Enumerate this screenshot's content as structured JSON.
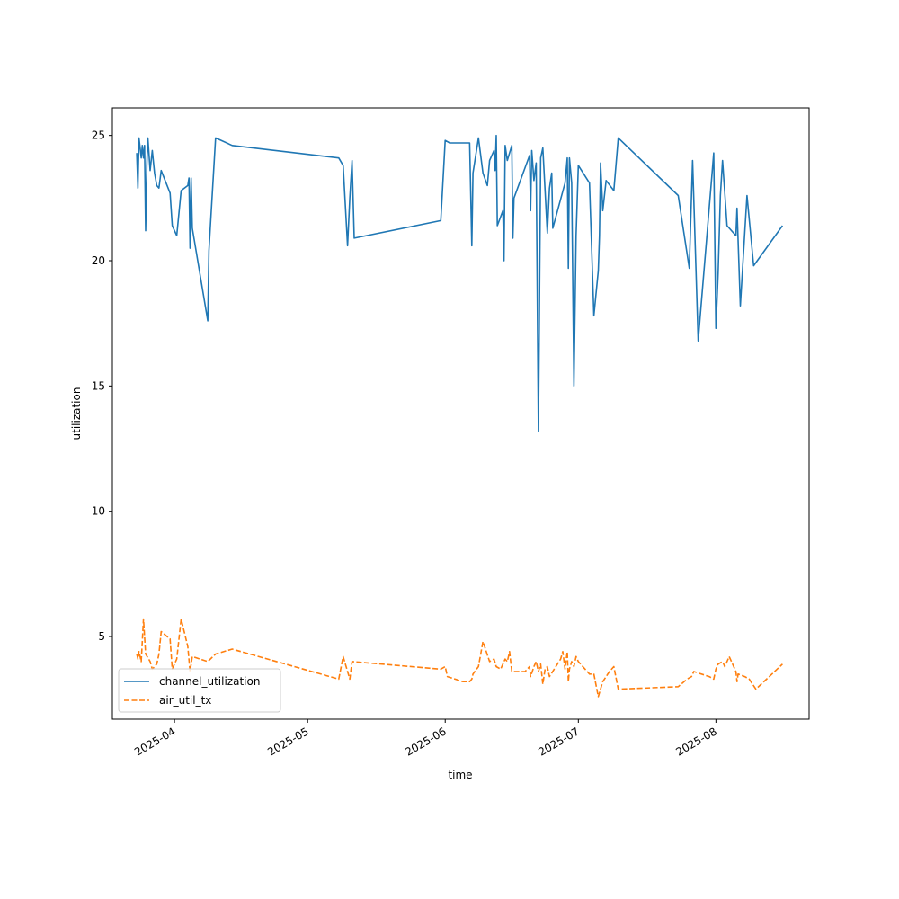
{
  "chart_data": {
    "type": "line",
    "title": "",
    "xlabel": "time",
    "ylabel": "utilization",
    "xlim": [
      "2025-03-18",
      "2025-08-22"
    ],
    "ylim": [
      1.7,
      26.1
    ],
    "grid": false,
    "legend_position": "lower-left",
    "x_ticks": [
      {
        "date": "2025-04-01",
        "label": "2025-04"
      },
      {
        "date": "2025-05-01",
        "label": "2025-05"
      },
      {
        "date": "2025-06-01",
        "label": "2025-06"
      },
      {
        "date": "2025-07-01",
        "label": "2025-07"
      },
      {
        "date": "2025-08-01",
        "label": "2025-08"
      }
    ],
    "y_ticks": [
      5,
      10,
      15,
      20,
      25
    ],
    "series": [
      {
        "name": "channel_utilization",
        "color": "#1f77b4",
        "dash": "solid",
        "points": [
          [
            "2025-03-23T12:00",
            24.3
          ],
          [
            "2025-03-23T18:00",
            22.9
          ],
          [
            "2025-03-24T00:00",
            24.9
          ],
          [
            "2025-03-24T12:00",
            24.1
          ],
          [
            "2025-03-24T18:00",
            24.6
          ],
          [
            "2025-03-25T00:00",
            24.1
          ],
          [
            "2025-03-25T06:00",
            24.6
          ],
          [
            "2025-03-25T12:00",
            21.2
          ],
          [
            "2025-03-25T18:00",
            23.8
          ],
          [
            "2025-03-26T00:00",
            24.9
          ],
          [
            "2025-03-26T12:00",
            23.6
          ],
          [
            "2025-03-27T00:00",
            24.4
          ],
          [
            "2025-03-27T12:00",
            23.5
          ],
          [
            "2025-03-28T00:00",
            23.0
          ],
          [
            "2025-03-28T12:00",
            22.9
          ],
          [
            "2025-03-29T00:00",
            23.6
          ],
          [
            "2025-03-31T00:00",
            22.7
          ],
          [
            "2025-03-31T12:00",
            21.4
          ],
          [
            "2025-04-01T12:00",
            21.0
          ],
          [
            "2025-04-02T12:00",
            22.8
          ],
          [
            "2025-04-04T00:00",
            23.0
          ],
          [
            "2025-04-04T06:00",
            23.3
          ],
          [
            "2025-04-04T12:00",
            20.5
          ],
          [
            "2025-04-04T18:00",
            23.3
          ],
          [
            "2025-04-05T00:00",
            21.3
          ],
          [
            "2025-04-08T12:00",
            17.6
          ],
          [
            "2025-04-08T18:00",
            20.4
          ],
          [
            "2025-04-10T06:00",
            24.9
          ],
          [
            "2025-04-14T00:00",
            24.6
          ],
          [
            "2025-05-08T00:00",
            24.1
          ],
          [
            "2025-05-09T00:00",
            23.8
          ],
          [
            "2025-05-10T00:00",
            20.6
          ],
          [
            "2025-05-10T12:00",
            22.5
          ],
          [
            "2025-05-11T00:00",
            24.0
          ],
          [
            "2025-05-11T12:00",
            20.9
          ],
          [
            "2025-05-31T00:00",
            21.6
          ],
          [
            "2025-06-01T00:00",
            24.8
          ],
          [
            "2025-06-02T00:00",
            24.7
          ],
          [
            "2025-06-06T12:00",
            24.7
          ],
          [
            "2025-06-07T00:00",
            20.6
          ],
          [
            "2025-06-07T06:00",
            23.5
          ],
          [
            "2025-06-08T12:00",
            24.9
          ],
          [
            "2025-06-09T12:00",
            23.5
          ],
          [
            "2025-06-10T12:00",
            23.0
          ],
          [
            "2025-06-11T00:00",
            24.0
          ],
          [
            "2025-06-12T00:00",
            24.4
          ],
          [
            "2025-06-12T06:00",
            23.6
          ],
          [
            "2025-06-12T12:00",
            25.0
          ],
          [
            "2025-06-12T18:00",
            21.4
          ],
          [
            "2025-06-14T00:00",
            22.0
          ],
          [
            "2025-06-14T06:00",
            20.0
          ],
          [
            "2025-06-14T12:00",
            24.6
          ],
          [
            "2025-06-15T00:00",
            24.0
          ],
          [
            "2025-06-16T00:00",
            24.6
          ],
          [
            "2025-06-16T06:00",
            20.9
          ],
          [
            "2025-06-16T12:00",
            22.5
          ],
          [
            "2025-06-20T00:00",
            24.2
          ],
          [
            "2025-06-20T06:00",
            22.0
          ],
          [
            "2025-06-20T12:00",
            24.4
          ],
          [
            "2025-06-21T00:00",
            23.2
          ],
          [
            "2025-06-21T12:00",
            23.9
          ],
          [
            "2025-06-22T00:00",
            13.2
          ],
          [
            "2025-06-22T12:00",
            24.1
          ],
          [
            "2025-06-23T00:00",
            24.5
          ],
          [
            "2025-06-24T00:00",
            21.1
          ],
          [
            "2025-06-24T12:00",
            22.9
          ],
          [
            "2025-06-25T00:00",
            23.5
          ],
          [
            "2025-06-25T06:00",
            21.3
          ],
          [
            "2025-06-28T00:00",
            23.1
          ],
          [
            "2025-06-28T12:00",
            24.1
          ],
          [
            "2025-06-28T18:00",
            19.7
          ],
          [
            "2025-06-29T00:00",
            24.1
          ],
          [
            "2025-06-29T12:00",
            23.1
          ],
          [
            "2025-06-30T00:00",
            15.0
          ],
          [
            "2025-06-30T12:00",
            21.0
          ],
          [
            "2025-07-01T00:00",
            23.8
          ],
          [
            "2025-07-03T12:00",
            23.1
          ],
          [
            "2025-07-04T12:00",
            17.8
          ],
          [
            "2025-07-05T12:00",
            19.6
          ],
          [
            "2025-07-05T18:00",
            21.0
          ],
          [
            "2025-07-06T00:00",
            23.9
          ],
          [
            "2025-07-06T12:00",
            22.0
          ],
          [
            "2025-07-07T06:00",
            23.2
          ],
          [
            "2025-07-09T00:00",
            22.8
          ],
          [
            "2025-07-10T00:00",
            24.9
          ],
          [
            "2025-07-23T12:00",
            22.6
          ],
          [
            "2025-07-26T00:00",
            19.7
          ],
          [
            "2025-07-26T18:00",
            24.0
          ],
          [
            "2025-07-28T00:00",
            16.8
          ],
          [
            "2025-07-31T00:00",
            23.2
          ],
          [
            "2025-07-31T12:00",
            24.3
          ],
          [
            "2025-08-01T00:00",
            17.3
          ],
          [
            "2025-08-01T12:00",
            19.5
          ],
          [
            "2025-08-02T00:00",
            22.6
          ],
          [
            "2025-08-02T12:00",
            24.0
          ],
          [
            "2025-08-03T12:00",
            21.4
          ],
          [
            "2025-08-05T12:00",
            21.0
          ],
          [
            "2025-08-05T18:00",
            22.1
          ],
          [
            "2025-08-06T12:00",
            18.2
          ],
          [
            "2025-08-08T00:00",
            22.6
          ],
          [
            "2025-08-09T12:00",
            19.8
          ],
          [
            "2025-08-16T00:00",
            21.4
          ]
        ]
      },
      {
        "name": "air_util_tx",
        "color": "#ff7f0e",
        "dash": "dashed",
        "points": [
          [
            "2025-03-23T12:00",
            4.3
          ],
          [
            "2025-03-23T18:00",
            4.1
          ],
          [
            "2025-03-24T00:00",
            4.4
          ],
          [
            "2025-03-24T12:00",
            4.0
          ],
          [
            "2025-03-25T00:00",
            5.7
          ],
          [
            "2025-03-25T12:00",
            4.3
          ],
          [
            "2025-03-26T12:00",
            4.0
          ],
          [
            "2025-03-27T00:00",
            3.7
          ],
          [
            "2025-03-28T00:00",
            3.9
          ],
          [
            "2025-03-28T12:00",
            4.3
          ],
          [
            "2025-03-29T00:00",
            5.2
          ],
          [
            "2025-03-31T00:00",
            4.9
          ],
          [
            "2025-03-31T12:00",
            3.7
          ],
          [
            "2025-04-01T12:00",
            4.1
          ],
          [
            "2025-04-02T12:00",
            5.7
          ],
          [
            "2025-04-04T00:00",
            4.6
          ],
          [
            "2025-04-04T12:00",
            3.6
          ],
          [
            "2025-04-05T00:00",
            4.2
          ],
          [
            "2025-04-08T12:00",
            4.0
          ],
          [
            "2025-04-10T06:00",
            4.3
          ],
          [
            "2025-04-14T00:00",
            4.5
          ],
          [
            "2025-05-08T00:00",
            3.3
          ],
          [
            "2025-05-09T00:00",
            4.2
          ],
          [
            "2025-05-10T12:00",
            3.3
          ],
          [
            "2025-05-11T00:00",
            4.0
          ],
          [
            "2025-05-31T00:00",
            3.7
          ],
          [
            "2025-06-01T00:00",
            3.8
          ],
          [
            "2025-06-01T12:00",
            3.4
          ],
          [
            "2025-06-05T00:00",
            3.2
          ],
          [
            "2025-06-06T12:00",
            3.2
          ],
          [
            "2025-06-07T00:00",
            3.3
          ],
          [
            "2025-06-07T06:00",
            3.5
          ],
          [
            "2025-06-08T12:00",
            3.8
          ],
          [
            "2025-06-09T12:00",
            4.8
          ],
          [
            "2025-06-11T00:00",
            4.0
          ],
          [
            "2025-06-12T00:00",
            4.1
          ],
          [
            "2025-06-12T12:00",
            3.8
          ],
          [
            "2025-06-13T12:00",
            3.7
          ],
          [
            "2025-06-14T12:00",
            4.1
          ],
          [
            "2025-06-15T00:00",
            4.0
          ],
          [
            "2025-06-15T12:00",
            4.4
          ],
          [
            "2025-06-16T00:00",
            3.6
          ],
          [
            "2025-06-19T00:00",
            3.6
          ],
          [
            "2025-06-20T00:00",
            3.8
          ],
          [
            "2025-06-20T06:00",
            3.4
          ],
          [
            "2025-06-21T00:00",
            3.8
          ],
          [
            "2025-06-21T12:00",
            4.0
          ],
          [
            "2025-06-22T00:00",
            3.6
          ],
          [
            "2025-06-22T12:00",
            3.9
          ],
          [
            "2025-06-23T00:00",
            3.1
          ],
          [
            "2025-06-23T12:00",
            3.7
          ],
          [
            "2025-06-24T00:00",
            3.8
          ],
          [
            "2025-06-24T12:00",
            3.4
          ],
          [
            "2025-06-27T00:00",
            4.1
          ],
          [
            "2025-06-27T12:00",
            4.4
          ],
          [
            "2025-06-28T00:00",
            3.7
          ],
          [
            "2025-06-28T12:00",
            4.4
          ],
          [
            "2025-06-28T18:00",
            3.2
          ],
          [
            "2025-06-29T00:00",
            3.7
          ],
          [
            "2025-06-29T12:00",
            4.0
          ],
          [
            "2025-06-30T00:00",
            3.8
          ],
          [
            "2025-06-30T12:00",
            4.2
          ],
          [
            "2025-07-01T00:00",
            4.0
          ],
          [
            "2025-07-03T12:00",
            3.5
          ],
          [
            "2025-07-04T12:00",
            3.5
          ],
          [
            "2025-07-05T12:00",
            2.6
          ],
          [
            "2025-07-06T12:00",
            3.2
          ],
          [
            "2025-07-08T00:00",
            3.6
          ],
          [
            "2025-07-09T00:00",
            3.8
          ],
          [
            "2025-07-10T00:00",
            2.9
          ],
          [
            "2025-07-23T12:00",
            3.0
          ],
          [
            "2025-07-25T12:00",
            3.3
          ],
          [
            "2025-07-26T12:00",
            3.4
          ],
          [
            "2025-07-27T00:00",
            3.6
          ],
          [
            "2025-07-30T12:00",
            3.4
          ],
          [
            "2025-07-31T12:00",
            3.3
          ],
          [
            "2025-08-01T00:00",
            3.7
          ],
          [
            "2025-08-01T12:00",
            3.9
          ],
          [
            "2025-08-02T12:00",
            4.0
          ],
          [
            "2025-08-03T00:00",
            3.8
          ],
          [
            "2025-08-04T00:00",
            4.2
          ],
          [
            "2025-08-05T12:00",
            3.6
          ],
          [
            "2025-08-05T18:00",
            3.2
          ],
          [
            "2025-08-06T00:00",
            3.5
          ],
          [
            "2025-08-07T12:00",
            3.4
          ],
          [
            "2025-08-08T12:00",
            3.3
          ],
          [
            "2025-08-10T00:00",
            2.9
          ],
          [
            "2025-08-16T00:00",
            3.9
          ]
        ]
      }
    ]
  }
}
